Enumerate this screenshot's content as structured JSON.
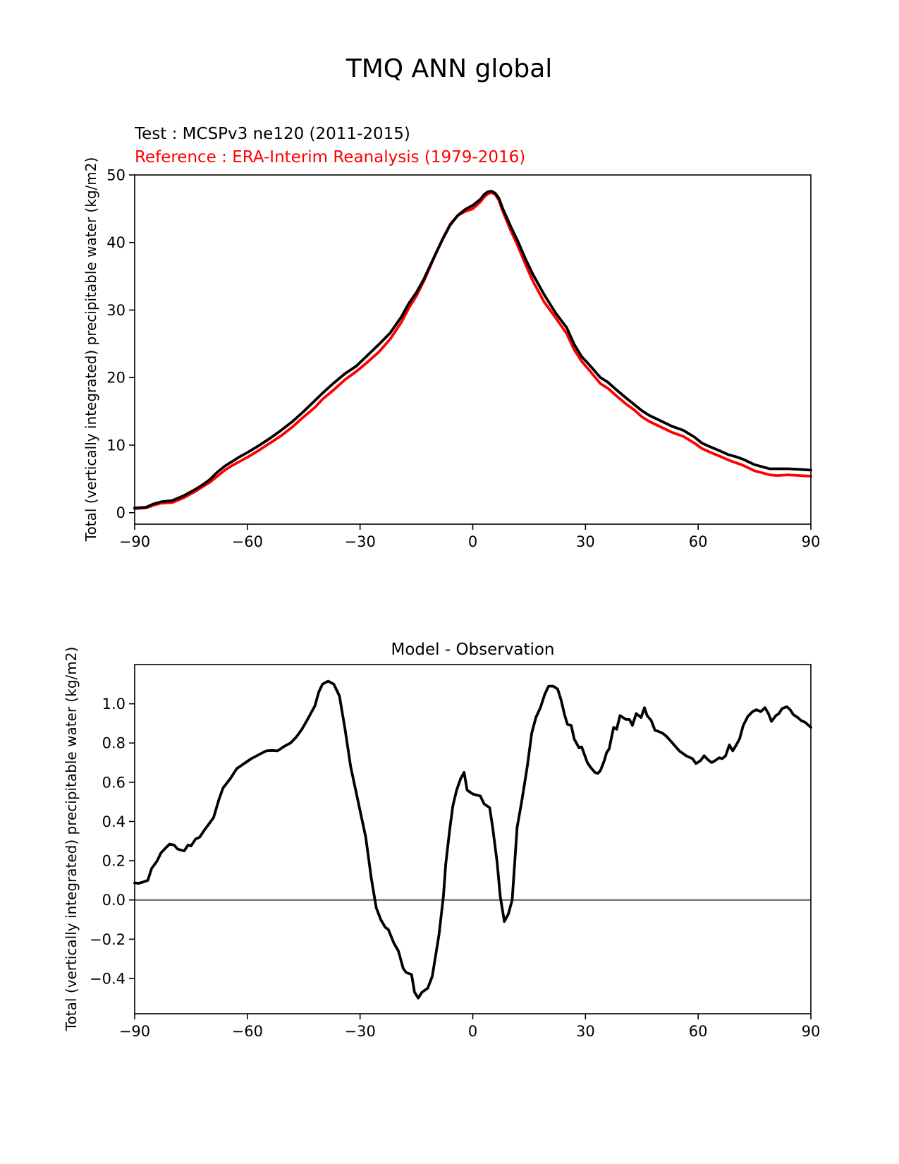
{
  "figure": {
    "title": "TMQ ANN global"
  },
  "chart_data": [
    {
      "type": "line",
      "test_label": "Test : MCSPv3 ne120 (2011-2015)",
      "reference_label": "Reference : ERA-Interim Reanalysis (1979-2016)",
      "ylabel": "Total (vertically integrated) precipitable water (kg/m2)",
      "xlabel": "",
      "xlim": [
        -90,
        90
      ],
      "ylim": [
        -1.7,
        50
      ],
      "xticks": [
        -90,
        -60,
        -30,
        0,
        30,
        60,
        90
      ],
      "xtick_labels": [
        "−90",
        "−60",
        "−30",
        "0",
        "30",
        "60",
        "90"
      ],
      "yticks": [
        0,
        10,
        20,
        30,
        40,
        50
      ],
      "ytick_labels": [
        "0",
        "10",
        "20",
        "30",
        "40",
        "50"
      ],
      "colors": {
        "test": "#000000",
        "reference": "#ff0000"
      },
      "x": [
        -90,
        -87,
        -85,
        -83,
        -80,
        -77,
        -74,
        -72,
        -70,
        -68,
        -66,
        -64,
        -62,
        -60,
        -57,
        -54,
        -51,
        -48,
        -45,
        -42,
        -40,
        -37,
        -34,
        -31,
        -28,
        -25,
        -22,
        -19,
        -17,
        -15,
        -13,
        -10,
        -8,
        -6,
        -4,
        -2,
        0,
        2,
        3,
        4,
        5,
        6,
        7,
        8,
        10,
        12,
        14,
        16,
        19,
        22,
        25,
        27,
        29,
        31,
        34,
        36,
        38,
        41,
        43,
        45,
        47,
        50,
        53,
        56,
        59,
        61,
        63,
        66,
        68,
        70,
        72,
        75,
        77,
        79,
        81,
        84,
        87,
        90
      ],
      "series": [
        {
          "name": "Test : MCSPv3 ne120 (2011-2015)",
          "values": [
            0.7,
            0.8,
            1.3,
            1.6,
            1.8,
            2.5,
            3.4,
            4.1,
            4.9,
            6.0,
            6.9,
            7.6,
            8.3,
            8.9,
            9.9,
            11.0,
            12.2,
            13.5,
            15.0,
            16.6,
            17.7,
            19.2,
            20.6,
            21.7,
            23.3,
            24.9,
            26.6,
            29.0,
            31.0,
            32.6,
            34.6,
            38.2,
            40.5,
            42.6,
            44.0,
            44.9,
            45.5,
            46.4,
            47.1,
            47.5,
            47.6,
            47.3,
            46.5,
            45.0,
            42.5,
            40.2,
            37.6,
            35.3,
            32.3,
            29.6,
            27.4,
            24.9,
            23.1,
            21.9,
            20.0,
            19.3,
            18.3,
            16.9,
            16.0,
            15.1,
            14.4,
            13.6,
            12.8,
            12.2,
            11.2,
            10.3,
            9.8,
            9.1,
            8.6,
            8.3,
            7.9,
            7.1,
            6.8,
            6.5,
            6.5,
            6.5,
            6.4,
            6.3
          ]
        },
        {
          "name": "Reference : ERA-Interim Reanalysis (1979-2016)",
          "values": [
            0.6,
            0.7,
            1.1,
            1.4,
            1.5,
            2.2,
            3.1,
            3.8,
            4.5,
            5.4,
            6.3,
            7.0,
            7.6,
            8.2,
            9.2,
            10.3,
            11.4,
            12.7,
            14.2,
            15.6,
            16.8,
            18.2,
            19.7,
            20.9,
            22.3,
            23.8,
            25.7,
            28.2,
            30.3,
            32.1,
            34.3,
            38.1,
            40.6,
            42.7,
            44.0,
            44.6,
            45.0,
            46.0,
            46.7,
            47.2,
            47.4,
            47.1,
            46.2,
            44.6,
            41.9,
            39.5,
            36.8,
            34.3,
            31.2,
            28.9,
            26.5,
            24.1,
            22.4,
            21.1,
            19.1,
            18.4,
            17.4,
            16.0,
            15.2,
            14.2,
            13.5,
            12.7,
            11.9,
            11.3,
            10.3,
            9.5,
            9.0,
            8.3,
            7.8,
            7.4,
            7.0,
            6.2,
            5.9,
            5.6,
            5.5,
            5.6,
            5.5,
            5.4
          ]
        }
      ]
    },
    {
      "type": "line",
      "title": "Model - Observation",
      "ylabel": "Total (vertically integrated) precipitable water (kg/m2)",
      "xlabel": "",
      "xlim": [
        -90,
        90
      ],
      "ylim": [
        -0.58,
        1.2
      ],
      "xticks": [
        -90,
        -60,
        -30,
        0,
        30,
        60,
        90
      ],
      "xtick_labels": [
        "−90",
        "−60",
        "−30",
        "0",
        "30",
        "60",
        "90"
      ],
      "yticks": [
        -0.4,
        -0.2,
        0.0,
        0.2,
        0.4,
        0.6,
        0.8,
        1.0
      ],
      "ytick_labels": [
        "−0.4",
        "−0.2",
        "0.0",
        "0.2",
        "0.4",
        "0.6",
        "0.8",
        "1.0"
      ],
      "zero_line_color": "#808080",
      "colors": {
        "difference": "#000000"
      },
      "x": [
        -90,
        -89,
        -88,
        -86.5,
        -85.5,
        -84,
        -83,
        -82,
        -80.7,
        -79.5,
        -78.6,
        -77.8,
        -76.8,
        -75.8,
        -75,
        -73.8,
        -72.7,
        -71.3,
        -70.5,
        -69,
        -67.6,
        -66.5,
        -64.5,
        -62.8,
        -60.5,
        -59,
        -56.5,
        -55,
        -53.5,
        -52,
        -50.8,
        -50,
        -48.5,
        -47,
        -45.5,
        -44,
        -42,
        -41,
        -40,
        -38.5,
        -37,
        -35.5,
        -34,
        -32.5,
        -30.5,
        -28.5,
        -27,
        -25.7,
        -24.5,
        -23.3,
        -22.5,
        -21,
        -19.8,
        -18.5,
        -17.7,
        -16.3,
        -15.5,
        -14.5,
        -13.5,
        -12,
        -10.8,
        -9,
        -7.8,
        -7.2,
        -6.2,
        -5.3,
        -4.3,
        -3.2,
        -2.3,
        -1.5,
        0,
        1,
        2,
        3,
        4.5,
        5.3,
        6.5,
        7.3,
        8.4,
        9.5,
        10.5,
        11.8,
        13,
        14.5,
        15.7,
        16.8,
        18,
        19.2,
        20.2,
        21.4,
        22.6,
        23.5,
        24.5,
        25.2,
        26.2,
        27,
        28.3,
        29,
        30.5,
        31.4,
        32.5,
        33.3,
        34,
        35,
        35.6,
        36.3,
        37.5,
        38.3,
        39.2,
        40,
        40.8,
        41.7,
        42.5,
        43.5,
        44.8,
        45.7,
        46.4,
        47.5,
        48.5,
        49.3,
        50.5,
        51.5,
        52.7,
        53.6,
        55,
        56.8,
        58.5,
        59.4,
        60.6,
        61.6,
        62.6,
        63.6,
        64.5,
        65.6,
        66.4,
        67.3,
        68.3,
        69.2,
        70,
        71,
        72,
        73.2,
        74.5,
        75.5,
        76.7,
        77.8,
        78.7,
        79.5,
        80.7,
        81.5,
        82.3,
        83.6,
        84.5,
        85.3,
        86.5,
        87.4,
        88.5,
        90
      ],
      "series": [
        {
          "name": "",
          "values": [
            0.087,
            0.085,
            0.09,
            0.1,
            0.16,
            0.2,
            0.24,
            0.26,
            0.285,
            0.28,
            0.26,
            0.255,
            0.25,
            0.28,
            0.275,
            0.31,
            0.32,
            0.36,
            0.38,
            0.42,
            0.51,
            0.57,
            0.62,
            0.67,
            0.7,
            0.72,
            0.745,
            0.76,
            0.762,
            0.76,
            0.775,
            0.785,
            0.8,
            0.83,
            0.87,
            0.92,
            0.99,
            1.06,
            1.1,
            1.115,
            1.1,
            1.04,
            0.87,
            0.68,
            0.5,
            0.32,
            0.11,
            -0.04,
            -0.1,
            -0.14,
            -0.15,
            -0.22,
            -0.26,
            -0.35,
            -0.37,
            -0.38,
            -0.47,
            -0.5,
            -0.47,
            -0.45,
            -0.39,
            -0.18,
            0.02,
            0.18,
            0.35,
            0.48,
            0.56,
            0.62,
            0.65,
            0.56,
            0.54,
            0.535,
            0.53,
            0.49,
            0.47,
            0.37,
            0.19,
            0.02,
            -0.11,
            -0.07,
            0.0,
            0.37,
            0.5,
            0.68,
            0.85,
            0.93,
            0.98,
            1.05,
            1.09,
            1.09,
            1.075,
            1.02,
            0.94,
            0.895,
            0.89,
            0.82,
            0.775,
            0.78,
            0.7,
            0.675,
            0.65,
            0.645,
            0.66,
            0.71,
            0.75,
            0.77,
            0.88,
            0.87,
            0.94,
            0.93,
            0.92,
            0.92,
            0.89,
            0.95,
            0.93,
            0.98,
            0.94,
            0.915,
            0.865,
            0.86,
            0.85,
            0.835,
            0.81,
            0.79,
            0.76,
            0.735,
            0.72,
            0.695,
            0.71,
            0.735,
            0.715,
            0.7,
            0.71,
            0.725,
            0.72,
            0.735,
            0.79,
            0.76,
            0.785,
            0.82,
            0.89,
            0.935,
            0.96,
            0.97,
            0.96,
            0.98,
            0.95,
            0.91,
            0.94,
            0.95,
            0.975,
            0.985,
            0.97,
            0.945,
            0.93,
            0.915,
            0.905,
            0.88
          ]
        }
      ]
    }
  ]
}
